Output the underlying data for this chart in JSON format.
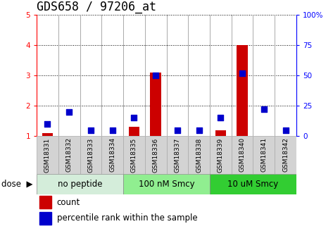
{
  "title": "GDS658 / 97206_at",
  "samples": [
    "GSM18331",
    "GSM18332",
    "GSM18333",
    "GSM18334",
    "GSM18335",
    "GSM18336",
    "GSM18337",
    "GSM18338",
    "GSM18339",
    "GSM18340",
    "GSM18341",
    "GSM18342"
  ],
  "count": [
    1.1,
    1.0,
    1.0,
    1.0,
    1.3,
    3.1,
    1.0,
    1.0,
    1.2,
    4.0,
    1.0,
    1.0
  ],
  "percentile": [
    10,
    20,
    5,
    5,
    15,
    50,
    5,
    5,
    15,
    52,
    22,
    5
  ],
  "ylim_left": [
    1,
    5
  ],
  "ylim_right": [
    0,
    100
  ],
  "yticks_left": [
    1,
    2,
    3,
    4,
    5
  ],
  "ytick_labels_left": [
    "1",
    "2",
    "3",
    "4",
    "5"
  ],
  "yticks_right": [
    0,
    25,
    50,
    75,
    100
  ],
  "ytick_labels_right": [
    "0",
    "25",
    "50",
    "75",
    "100%"
  ],
  "groups": [
    {
      "label": "no peptide",
      "start": 0,
      "end": 4,
      "color": "#d4edda"
    },
    {
      "label": "100 nM Smcy",
      "start": 4,
      "end": 8,
      "color": "#90ee90"
    },
    {
      "label": "10 uM Smcy",
      "start": 8,
      "end": 12,
      "color": "#32cd32"
    }
  ],
  "bar_color": "#cc0000",
  "dot_color": "#0000cc",
  "bar_width": 0.5,
  "dot_size": 28,
  "legend_count": "count",
  "legend_percentile": "percentile rank within the sample",
  "tick_fontsize": 7.5,
  "sample_fontsize": 6.5,
  "group_fontsize": 8.5,
  "title_fontsize": 12
}
